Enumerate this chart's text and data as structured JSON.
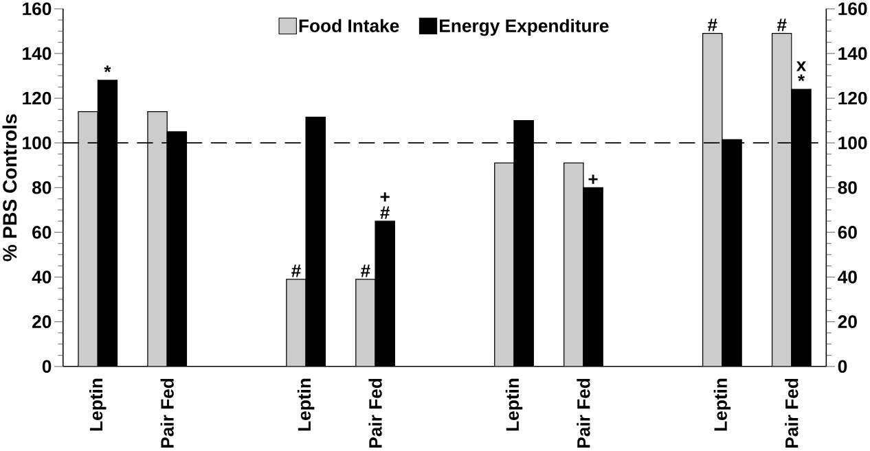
{
  "chart_data": {
    "type": "bar",
    "ylabel": "% PBS Controls",
    "categories": [
      "Leptin",
      "Pair Fed",
      null,
      "Leptin",
      "Pair Fed",
      null,
      "Leptin",
      "Pair Fed",
      null,
      "Leptin",
      "Pair Fed"
    ],
    "series": [
      {
        "name": "Food Intake",
        "color": "#cccccc",
        "values": [
          114,
          114,
          null,
          39,
          39,
          null,
          91,
          91,
          null,
          149,
          149
        ]
      },
      {
        "name": "Energy Expenditure",
        "color": "#000000",
        "values": [
          128,
          105,
          null,
          111.5,
          65,
          null,
          110,
          80,
          null,
          101.5,
          124
        ]
      }
    ],
    "ylim": [
      0,
      160
    ],
    "yticks": [
      0,
      20,
      40,
      60,
      80,
      100,
      120,
      140,
      160
    ],
    "y2lim": [
      0,
      160
    ],
    "y2ticks": [
      0,
      20,
      40,
      60,
      80,
      100,
      120,
      140,
      160
    ],
    "ref_lines": [
      {
        "axis": "y",
        "value": 100,
        "line_style": "dashed",
        "color": "#000000"
      }
    ],
    "legend": "top",
    "annotations": [
      "*",
      "#",
      "#",
      "#",
      "+",
      "+",
      "#",
      "#",
      "*",
      "x"
    ]
  }
}
